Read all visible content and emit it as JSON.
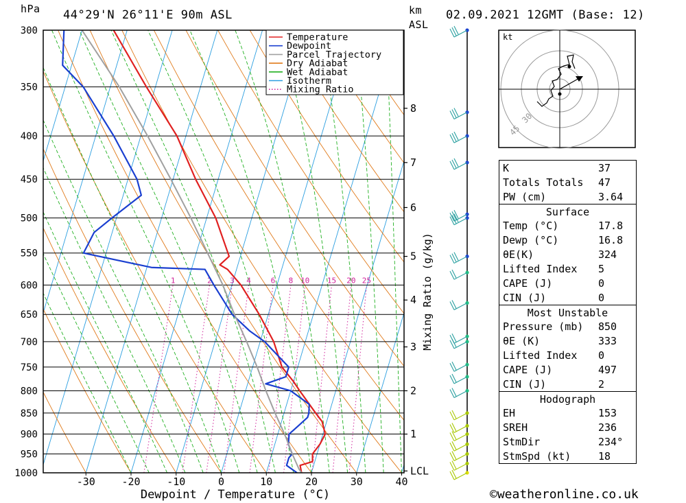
{
  "header": {
    "hpa_label": "hPa",
    "location": "44°29'N 26°11'E 90m ASL",
    "km_label": "km",
    "asl_label": "ASL",
    "datetime": "02.09.2021 12GMT (Base: 12)"
  },
  "chart_data": {
    "type": "line",
    "subtype": "skew-t log-p diagram",
    "xlabel": "Dewpoint / Temperature (°C)",
    "ylabel": "hPa",
    "right_axis_label": "Mixing Ratio (g/kg)",
    "xlim": [
      -40,
      40
    ],
    "ylim": [
      1000,
      300
    ],
    "x_ticks": [
      -30,
      -20,
      -10,
      0,
      10,
      20,
      30,
      40
    ],
    "pressure_levels": [
      300,
      350,
      400,
      450,
      500,
      550,
      600,
      650,
      700,
      750,
      800,
      850,
      900,
      950,
      1000
    ],
    "km_ticks": [
      {
        "label": "8",
        "p": 371
      },
      {
        "label": "7",
        "p": 430
      },
      {
        "label": "6",
        "p": 486
      },
      {
        "label": "5",
        "p": 555
      },
      {
        "label": "4",
        "p": 625
      },
      {
        "label": "3",
        "p": 710
      },
      {
        "label": "2",
        "p": 800
      },
      {
        "label": "1",
        "p": 900
      },
      {
        "label": "LCL",
        "p": 995
      }
    ],
    "mixing_ratio_labels": [
      "1",
      "2",
      "3",
      "4",
      "6",
      "8",
      "10",
      "15",
      "20",
      "25"
    ],
    "legend": [
      {
        "name": "Temperature",
        "color": "#e02020"
      },
      {
        "name": "Dewpoint",
        "color": "#1a3fd0"
      },
      {
        "name": "Parcel Trajectory",
        "color": "#a0a0a0"
      },
      {
        "name": "Dry Adiabat",
        "color": "#e07a1a"
      },
      {
        "name": "Wet Adiabat",
        "color": "#20b020"
      },
      {
        "name": "Isotherm",
        "color": "#2a9ee0"
      },
      {
        "name": "Mixing Ratio",
        "color": "#d0209a"
      }
    ],
    "legend_position": "top-right",
    "series": [
      {
        "name": "Temperature",
        "color": "#e02020",
        "points": [
          [
            1000,
            17.8
          ],
          [
            980,
            17
          ],
          [
            970,
            19.5
          ],
          [
            950,
            19
          ],
          [
            925,
            20
          ],
          [
            900,
            20.5
          ],
          [
            870,
            19
          ],
          [
            850,
            17
          ],
          [
            800,
            12
          ],
          [
            780,
            10
          ],
          [
            750,
            6.5
          ],
          [
            700,
            3
          ],
          [
            650,
            -2
          ],
          [
            600,
            -8
          ],
          [
            575,
            -12
          ],
          [
            568,
            -14
          ],
          [
            555,
            -12.5
          ],
          [
            500,
            -18
          ],
          [
            450,
            -25
          ],
          [
            400,
            -32
          ],
          [
            350,
            -42
          ],
          [
            300,
            -53
          ]
        ]
      },
      {
        "name": "Dewpoint",
        "color": "#1a3fd0",
        "points": [
          [
            1000,
            16.8
          ],
          [
            980,
            14
          ],
          [
            960,
            14
          ],
          [
            950,
            14.5
          ],
          [
            925,
            13
          ],
          [
            900,
            12.5
          ],
          [
            880,
            14
          ],
          [
            860,
            15.5
          ],
          [
            850,
            15.5
          ],
          [
            830,
            15
          ],
          [
            800,
            10
          ],
          [
            785,
            4
          ],
          [
            770,
            8
          ],
          [
            750,
            8
          ],
          [
            700,
            1
          ],
          [
            680,
            -3
          ],
          [
            650,
            -8
          ],
          [
            600,
            -14
          ],
          [
            575,
            -17
          ],
          [
            572,
            -29
          ],
          [
            550,
            -45
          ],
          [
            520,
            -44
          ],
          [
            500,
            -41
          ],
          [
            470,
            -36
          ],
          [
            450,
            -38
          ],
          [
            400,
            -46
          ],
          [
            350,
            -56
          ],
          [
            330,
            -62
          ],
          [
            300,
            -64
          ]
        ]
      },
      {
        "name": "Parcel Trajectory",
        "color": "#a0a0a0",
        "points": [
          [
            1000,
            17.8
          ],
          [
            990,
            17
          ],
          [
            950,
            14.5
          ],
          [
            900,
            11.5
          ],
          [
            850,
            8
          ],
          [
            800,
            4.5
          ],
          [
            750,
            1
          ],
          [
            700,
            -3
          ],
          [
            650,
            -7.5
          ],
          [
            600,
            -12
          ],
          [
            550,
            -17.5
          ],
          [
            500,
            -23.5
          ],
          [
            450,
            -30.5
          ],
          [
            400,
            -38.5
          ],
          [
            350,
            -48
          ],
          [
            300,
            -60
          ]
        ]
      }
    ],
    "hodograph_label": "kt",
    "hodograph_rings": [
      "30",
      "45"
    ],
    "wind_profile_note": "wind barbs plotted along right vertical axis"
  },
  "indices": {
    "general": [
      {
        "key": "K",
        "value": "37"
      },
      {
        "key": "Totals Totals",
        "value": "47"
      },
      {
        "key": "PW (cm)",
        "value": "3.64"
      }
    ],
    "surface_title": "Surface",
    "surface": [
      {
        "key": "Temp (°C)",
        "value": "17.8"
      },
      {
        "key": "Dewp (°C)",
        "value": "16.8"
      },
      {
        "key": "θE(K)",
        "value": "324"
      },
      {
        "key": "Lifted Index",
        "value": "5"
      },
      {
        "key": "CAPE (J)",
        "value": "0"
      },
      {
        "key": "CIN (J)",
        "value": "0"
      }
    ],
    "unstable_title": "Most Unstable",
    "unstable": [
      {
        "key": "Pressure (mb)",
        "value": "850"
      },
      {
        "key": "θE (K)",
        "value": "333"
      },
      {
        "key": "Lifted Index",
        "value": "0"
      },
      {
        "key": "CAPE (J)",
        "value": "497"
      },
      {
        "key": "CIN (J)",
        "value": "2"
      }
    ],
    "hodo_title": "Hodograph",
    "hodo": [
      {
        "key": "EH",
        "value": "153"
      },
      {
        "key": "SREH",
        "value": "236"
      },
      {
        "key": "StmDir",
        "value": "234°"
      },
      {
        "key": "StmSpd (kt)",
        "value": "18"
      }
    ]
  },
  "credit": "©weatheronline.co.uk"
}
